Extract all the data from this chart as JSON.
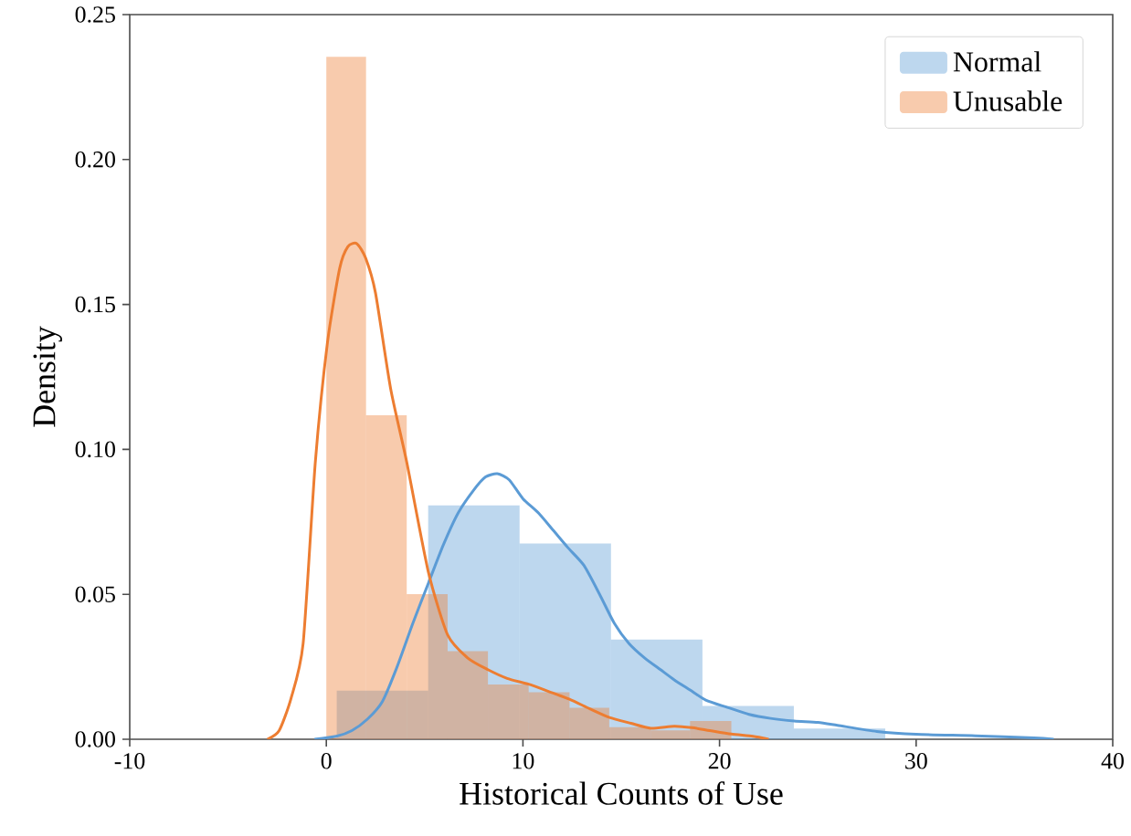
{
  "chart_data": {
    "type": "histogram",
    "xlabel": "Historical Counts of Use",
    "ylabel": "Density",
    "xlim": [
      -10,
      40
    ],
    "xticks": [
      -10,
      0,
      10,
      20,
      30,
      40
    ],
    "ylim": [
      0,
      0.25
    ],
    "yticks": [
      {
        "value": 0,
        "label": "0.00"
      },
      {
        "value": 0.05,
        "label": "0.05"
      },
      {
        "value": 0.1,
        "label": "0.10"
      },
      {
        "value": 0.15,
        "label": "0.15"
      },
      {
        "value": 0.2,
        "label": "0.20"
      },
      {
        "value": 0.25,
        "label": "0.25"
      }
    ],
    "legend": "top right",
    "grid": false,
    "series": [
      {
        "name": "Normal",
        "color": "#5b9bd5",
        "bins": [
          0.53,
          5.18,
          9.83,
          14.48,
          19.13,
          23.78,
          28.43
        ],
        "values": [
          0.0168,
          0.0807,
          0.0675,
          0.0344,
          0.0115,
          0.0037
        ]
      },
      {
        "name": "Unusable",
        "color": "#ed7d31",
        "bins": [
          0,
          2.02,
          4.09,
          6.17,
          8.22,
          10.29,
          12.37,
          14.39,
          16.5,
          18.5,
          20.6
        ],
        "values": [
          0.2354,
          0.1118,
          0.0501,
          0.0304,
          0.0189,
          0.0162,
          0.0109,
          0.0042,
          0.0031,
          0.0063
        ]
      },
      {
        "type": "line",
        "color": "#5b9bd5",
        "x": [
          -0.6,
          0.5,
          1.3,
          2.1,
          2.85,
          3.6,
          4.4,
          5.2,
          5.95,
          6.7,
          7.5,
          8.1,
          8.7,
          9.3,
          10,
          10.8,
          11.55,
          12.3,
          13.1,
          13.9,
          14.65,
          15.4,
          16.2,
          17,
          17.7,
          18.5,
          19.3,
          20.4,
          21.5,
          22.6,
          23.8,
          25,
          26,
          28,
          30,
          33,
          36,
          37
        ],
        "values": [
          0,
          0.001,
          0.003,
          0.007,
          0.013,
          0.025,
          0.04,
          0.054,
          0.067,
          0.078,
          0.086,
          0.0905,
          0.0916,
          0.0895,
          0.083,
          0.078,
          0.072,
          0.066,
          0.06,
          0.05,
          0.04,
          0.033,
          0.028,
          0.024,
          0.0205,
          0.017,
          0.0135,
          0.011,
          0.0086,
          0.0072,
          0.0063,
          0.0058,
          0.0048,
          0.0027,
          0.0017,
          0.0012,
          0.0005,
          0
        ]
      },
      {
        "type": "line",
        "color": "#ed7d31",
        "x": [
          -3,
          -2.4,
          -1.8,
          -1.18,
          -0.56,
          0.06,
          0.68,
          1.1,
          1.55,
          2,
          2.5,
          3.27,
          4.09,
          5.18,
          6.17,
          7.2,
          8.22,
          9.2,
          10.29,
          11.3,
          12.37,
          13.4,
          14.4,
          15.5,
          16.5,
          17.7,
          18.6,
          19.5,
          20.6,
          21.7,
          22.5
        ],
        "values": [
          0,
          0.003,
          0.014,
          0.033,
          0.0956,
          0.137,
          0.1625,
          0.17,
          0.171,
          0.166,
          0.154,
          0.121,
          0.0956,
          0.058,
          0.036,
          0.028,
          0.024,
          0.021,
          0.019,
          0.0165,
          0.0138,
          0.0105,
          0.0075,
          0.0055,
          0.0038,
          0.0045,
          0.004,
          0.003,
          0.0018,
          0.001,
          0
        ]
      }
    ]
  }
}
